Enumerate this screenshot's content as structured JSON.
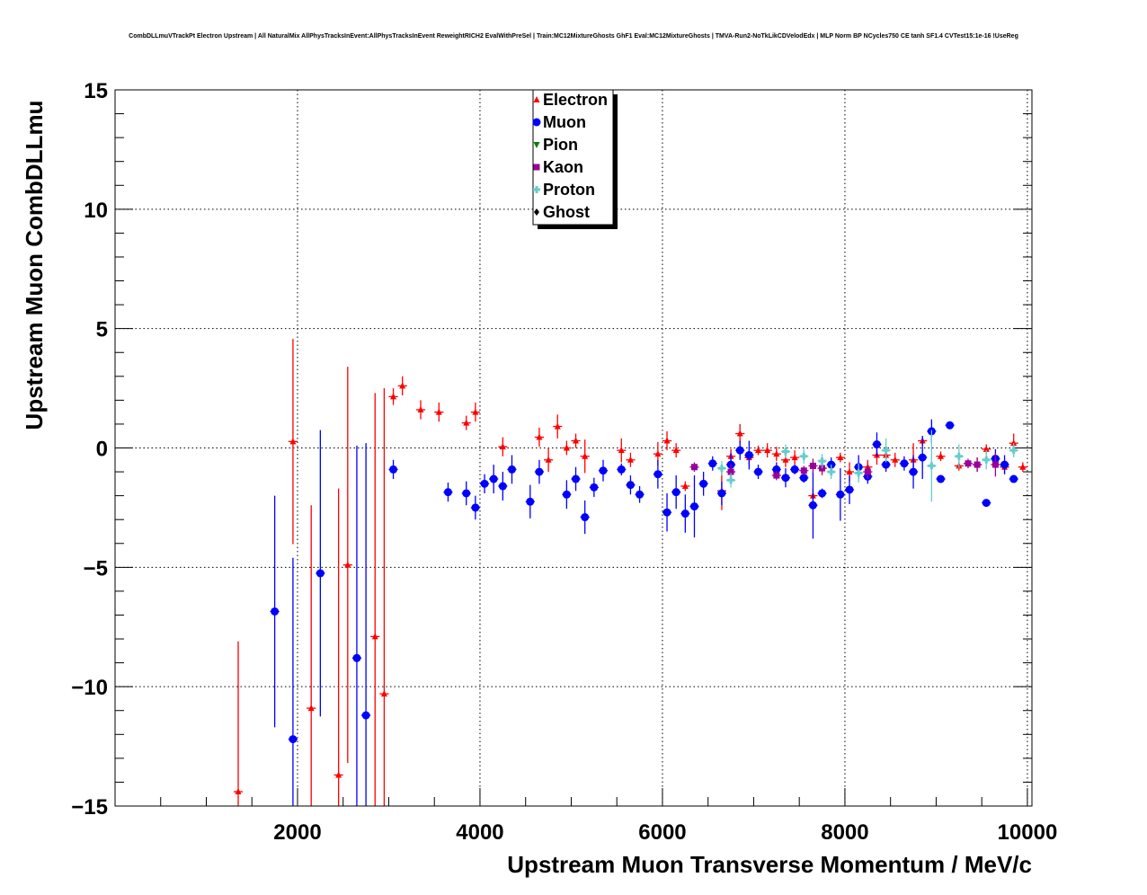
{
  "chart_data": {
    "type": "scatter",
    "title": "CombDLLmuVTrackPt Electron Upstream | All NaturalMix AllPhysTracksInEvent:AllPhysTracksInEvent ReweightRICH2 EvalWithPreSel | Train:MC12MixtureGhosts GhF1 Eval:MC12MixtureGhosts | TMVA-Run2-NoTkLikCDVelodEdx | MLP Norm BP NCycles750 CE tanh SF1.4 CVTest15:1e-16 !UseReg",
    "xlabel": "Upstream Muon Transverse Momentum / MeV/c",
    "ylabel": "Upstream Muon CombDLLmu",
    "xlim": [
      0,
      10050
    ],
    "ylim": [
      -15,
      15
    ],
    "x_bin_halfwidth": 50,
    "xticks": [
      2000,
      4000,
      6000,
      8000,
      10000
    ],
    "xtick_labels": [
      "2000",
      "4000",
      "6000",
      "8000",
      "10000"
    ],
    "yticks": [
      -15,
      -10,
      -5,
      0,
      5,
      10,
      15
    ],
    "ytick_labels": [
      "−15",
      "−10",
      "−5",
      "0",
      "5",
      "10",
      "15"
    ],
    "grid": true,
    "legend_position": "top-center",
    "series": [
      {
        "name": "Electron",
        "color": "#ff0000",
        "marker": "triangle-up",
        "points": [
          [
            1350,
            -14.4,
            6.3
          ],
          [
            1950,
            0.27,
            4.3
          ],
          [
            2150,
            -10.9,
            8.5
          ],
          [
            2450,
            -13.7,
            12
          ],
          [
            2550,
            -4.9,
            8.3
          ],
          [
            2850,
            -7.9,
            10.2
          ],
          [
            2950,
            -10.3,
            12.8
          ],
          [
            3050,
            2.15,
            0.35
          ],
          [
            3150,
            2.6,
            0.4
          ],
          [
            3350,
            1.6,
            0.4
          ],
          [
            3550,
            1.5,
            0.4
          ],
          [
            3850,
            1.05,
            0.3
          ],
          [
            3950,
            1.5,
            0.4
          ],
          [
            4250,
            0.05,
            0.4
          ],
          [
            4650,
            0.45,
            0.4
          ],
          [
            4750,
            -0.5,
            0.5
          ],
          [
            4850,
            0.9,
            0.5
          ],
          [
            4950,
            0.0,
            0.3
          ],
          [
            5050,
            0.3,
            0.3
          ],
          [
            5150,
            -0.35,
            0.7
          ],
          [
            5550,
            -0.1,
            0.5
          ],
          [
            5650,
            -0.5,
            0.3
          ],
          [
            5950,
            -0.25,
            0.5
          ],
          [
            6050,
            0.3,
            0.4
          ],
          [
            6150,
            -0.1,
            0.3
          ],
          [
            6250,
            -1.6,
            0.2
          ],
          [
            6650,
            -1.8,
            0.8
          ],
          [
            6750,
            -0.35,
            0.3
          ],
          [
            6850,
            0.6,
            0.4
          ],
          [
            6950,
            -0.4,
            0.3
          ],
          [
            7050,
            -0.1,
            0.2
          ],
          [
            7150,
            -0.1,
            0.3
          ],
          [
            7250,
            -0.25,
            0.3
          ],
          [
            7350,
            -0.5,
            0.3
          ],
          [
            7450,
            -0.4,
            0.3
          ],
          [
            7650,
            -2.0,
            0.3
          ],
          [
            7750,
            -0.85,
            0.3
          ],
          [
            7950,
            -0.4,
            0.2
          ],
          [
            8050,
            -1.0,
            0.4
          ],
          [
            8250,
            -0.8,
            0.3
          ],
          [
            8350,
            -0.3,
            0.4
          ],
          [
            8450,
            -0.3,
            0.3
          ],
          [
            8550,
            -0.5,
            0.3
          ],
          [
            8750,
            -0.5,
            0.7
          ],
          [
            8850,
            0.3,
            0.2
          ],
          [
            9050,
            -0.35,
            0.2
          ],
          [
            9250,
            -0.75,
            0.2
          ],
          [
            9450,
            -0.7,
            0.3
          ],
          [
            9550,
            -0.05,
            0.2
          ],
          [
            9750,
            -0.8,
            0.3
          ],
          [
            9850,
            0.2,
            0.4
          ],
          [
            9950,
            -0.8,
            0.2
          ]
        ]
      },
      {
        "name": "Muon",
        "color": "#0000ff",
        "marker": "circle",
        "points": [
          [
            1750,
            -6.85,
            4.85
          ],
          [
            1950,
            -12.2,
            7.6
          ],
          [
            2250,
            -5.25,
            6.0
          ],
          [
            2650,
            -8.8,
            8.9
          ],
          [
            2750,
            -11.2,
            11.4
          ],
          [
            3050,
            -0.9,
            0.4
          ],
          [
            3650,
            -1.85,
            0.4
          ],
          [
            3850,
            -1.9,
            0.5
          ],
          [
            3950,
            -2.5,
            0.5
          ],
          [
            4050,
            -1.5,
            0.4
          ],
          [
            4150,
            -1.3,
            0.6
          ],
          [
            4250,
            -1.6,
            0.6
          ],
          [
            4350,
            -0.9,
            0.6
          ],
          [
            4550,
            -2.25,
            0.7
          ],
          [
            4650,
            -1.0,
            0.5
          ],
          [
            4950,
            -1.95,
            0.6
          ],
          [
            5050,
            -1.3,
            0.5
          ],
          [
            5150,
            -2.9,
            0.7
          ],
          [
            5250,
            -1.65,
            0.4
          ],
          [
            5350,
            -0.95,
            0.45
          ],
          [
            5550,
            -0.9,
            0.25
          ],
          [
            5650,
            -1.55,
            0.4
          ],
          [
            5750,
            -1.95,
            0.35
          ],
          [
            5950,
            -1.1,
            0.6
          ],
          [
            6050,
            -2.7,
            0.8
          ],
          [
            6150,
            -1.85,
            0.7
          ],
          [
            6250,
            -2.75,
            0.8
          ],
          [
            6350,
            -2.45,
            1.3
          ],
          [
            6450,
            -1.5,
            0.5
          ],
          [
            6550,
            -0.65,
            0.3
          ],
          [
            6650,
            -1.9,
            0.5
          ],
          [
            6750,
            -0.7,
            0.5
          ],
          [
            6850,
            -0.1,
            0.4
          ],
          [
            6950,
            -0.3,
            0.6
          ],
          [
            7050,
            -1.0,
            0.3
          ],
          [
            7250,
            -0.9,
            0.3
          ],
          [
            7350,
            -1.25,
            0.4
          ],
          [
            7450,
            -0.9,
            0.2
          ],
          [
            7550,
            -1.25,
            0.2
          ],
          [
            7650,
            -2.4,
            1.4
          ],
          [
            7750,
            -1.9,
            0.2
          ],
          [
            7850,
            -0.7,
            0.3
          ],
          [
            7950,
            -1.95,
            1.1
          ],
          [
            8050,
            -1.75,
            0.6
          ],
          [
            8150,
            -0.8,
            0.5
          ],
          [
            8250,
            -1.2,
            0.3
          ],
          [
            8350,
            0.15,
            0.5
          ],
          [
            8450,
            -0.7,
            0.3
          ],
          [
            8650,
            -0.65,
            0.3
          ],
          [
            8750,
            -1.0,
            0.7
          ],
          [
            8850,
            -0.4,
            0.9
          ],
          [
            8950,
            0.7,
            0.5
          ],
          [
            9050,
            -1.3,
            0.15
          ],
          [
            9150,
            0.95,
            0.15
          ],
          [
            9550,
            -2.3,
            0.15
          ],
          [
            9650,
            -0.45,
            0.4
          ],
          [
            9750,
            -0.7,
            0.4
          ],
          [
            9850,
            -1.3,
            0.15
          ]
        ]
      },
      {
        "name": "Pion",
        "color": "#008000",
        "marker": "triangle-down",
        "points": []
      },
      {
        "name": "Kaon",
        "color": "#990099",
        "marker": "square",
        "points": [
          [
            6350,
            -0.8,
            0.2
          ],
          [
            6750,
            -1.0,
            0.3
          ],
          [
            7250,
            -1.15,
            0.2
          ],
          [
            7550,
            -0.95,
            0.2
          ],
          [
            7650,
            -0.75,
            0.3
          ],
          [
            7750,
            -0.85,
            0.2
          ],
          [
            8250,
            -1.0,
            0.3
          ],
          [
            9350,
            -0.65,
            0.2
          ],
          [
            9450,
            -0.7,
            0.3
          ],
          [
            9650,
            -0.7,
            0.5
          ]
        ]
      },
      {
        "name": "Proton",
        "color": "#66cccc",
        "marker": "cross",
        "points": [
          [
            6650,
            -0.85,
            0.3
          ],
          [
            6750,
            -1.35,
            0.3
          ],
          [
            7350,
            -0.15,
            0.3
          ],
          [
            7550,
            -0.35,
            0.3
          ],
          [
            7750,
            -0.55,
            0.3
          ],
          [
            7850,
            -1.0,
            0.3
          ],
          [
            8150,
            -1.05,
            0.4
          ],
          [
            8450,
            -0.1,
            0.5
          ],
          [
            8950,
            -0.75,
            1.5
          ],
          [
            9250,
            -0.35,
            0.5
          ],
          [
            9550,
            -0.5,
            0.4
          ],
          [
            9850,
            -0.1,
            0.3
          ]
        ]
      },
      {
        "name": "Ghost",
        "color": "#000000",
        "marker": "diamond",
        "points": []
      }
    ]
  }
}
